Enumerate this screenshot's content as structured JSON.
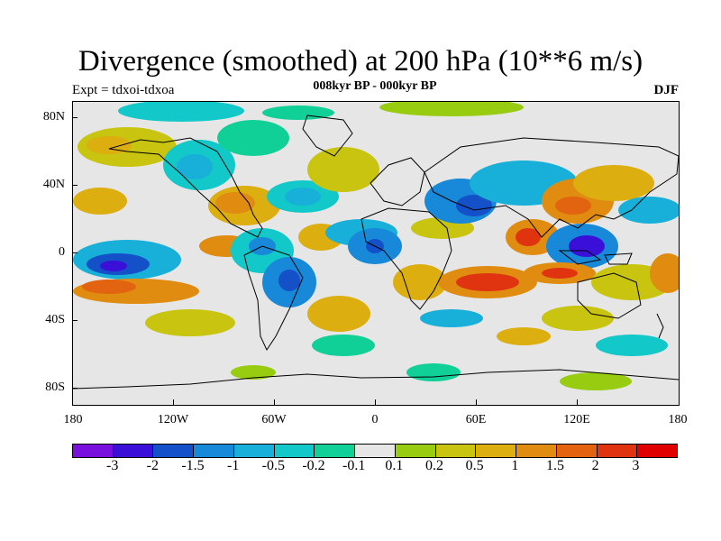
{
  "title": "Divergence (smoothed) at 200 hPa (10**6 m/s)",
  "experiment": "Expt = tdxoi-tdxoa",
  "period": "008kyr BP - 000kyr BP",
  "season": "DJF",
  "lat_axis": [
    "80N",
    "40N",
    "0",
    "40S",
    "80S"
  ],
  "lon_axis": [
    "180",
    "120W",
    "60W",
    "0",
    "60E",
    "120E",
    "180"
  ],
  "colorbar": {
    "labels": [
      "-3",
      "-2",
      "-1.5",
      "-1",
      "-0.5",
      "-0.2",
      "-0.1",
      "0.1",
      "0.2",
      "0.5",
      "1",
      "1.5",
      "2",
      "3"
    ],
    "colors": [
      "#7a10de",
      "#3a10d8",
      "#1450c8",
      "#1888d8",
      "#18b0d8",
      "#12c8c8",
      "#10d098",
      "#e6e6e6",
      "#98cc10",
      "#c8c410",
      "#dcae10",
      "#e08c10",
      "#e26410",
      "#e03410",
      "#e00000"
    ]
  },
  "map": {
    "projection": "cylindrical equidistant",
    "background_color": "#e6e6e6",
    "coastline_color": "#000000"
  }
}
